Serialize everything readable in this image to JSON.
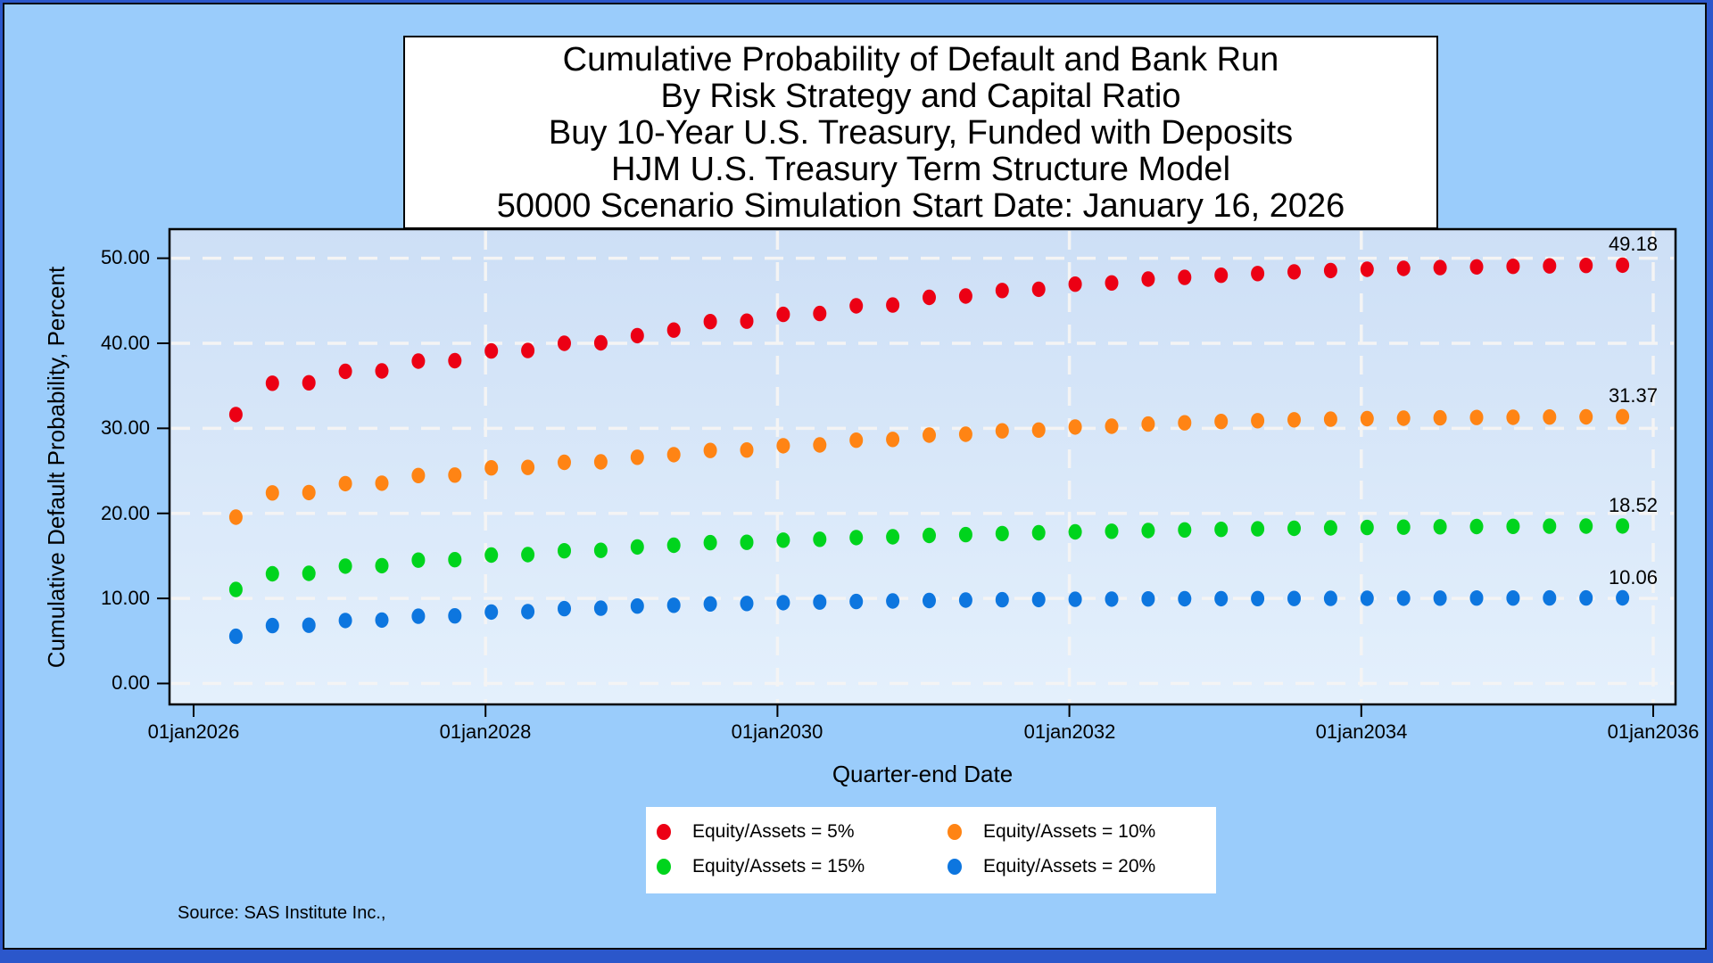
{
  "page": {
    "background_color": "#2b57cb",
    "panel_background_color": "#9accfb"
  },
  "title": {
    "lines": [
      "Cumulative Probability of Default and Bank Run",
      "By Risk Strategy and Capital Ratio",
      "Buy 10-Year U.S. Treasury, Funded with Deposits",
      "HJM U.S. Treasury Term Structure Model",
      "50000 Scenario Simulation Start Date: January 16, 2026"
    ]
  },
  "y_axis": {
    "title": "Cumulative Default Probability, Percent",
    "tick_labels": [
      "50.00",
      "40.00",
      "30.00",
      "20.00",
      "10.00",
      "0.00"
    ]
  },
  "x_axis": {
    "title": "Quarter-end Date",
    "tick_labels": [
      "01jan2026",
      "01jan2028",
      "01jan2030",
      "01jan2032",
      "01jan2034",
      "01jan2036"
    ]
  },
  "source_note": "Source: SAS Institute Inc.,",
  "chart_data": {
    "type": "scatter",
    "title_lines": [
      "Cumulative Probability of Default and Bank Run",
      "By Risk Strategy and Capital Ratio",
      "Buy 10-Year U.S. Treasury, Funded with Deposits",
      "HJM U.S. Treasury Term Structure Model",
      "50000 Scenario Simulation Start Date: January 16, 2026"
    ],
    "xlabel": "Quarter-end Date",
    "ylabel": "Cumulative Default Probability, Percent",
    "grid": true,
    "gridline_color": "#f4f4f4",
    "legend_position": "bottom",
    "x_tick_years": [
      2026,
      2028,
      2030,
      2032,
      2034,
      2036
    ],
    "x_gridline_years": [
      2028,
      2030,
      2032,
      2034,
      2036
    ],
    "y_ticks": [
      0,
      10,
      20,
      30,
      40,
      50
    ],
    "ylim": [
      -2.5,
      53.4
    ],
    "xlim_years": [
      2025.84,
      2036.15
    ],
    "x_start_year": 2026.29,
    "x_step_years": 0.25,
    "x_dates": [
      "16apr2026",
      "16jul2026",
      "16oct2026",
      "16jan2027",
      "16apr2027",
      "16jul2027",
      "16oct2027",
      "16jan2028",
      "16apr2028",
      "16jul2028",
      "16oct2028",
      "16jan2029",
      "16apr2029",
      "16jul2029",
      "16oct2029",
      "16jan2030",
      "16apr2030",
      "16jul2030",
      "16oct2030",
      "16jan2031",
      "16apr2031",
      "16jul2031",
      "16oct2031",
      "16jan2032",
      "16apr2032",
      "16jul2032",
      "16oct2032",
      "16jan2033",
      "16apr2033",
      "16jul2033",
      "16oct2033",
      "16jan2034",
      "16apr2034",
      "16jul2034",
      "16oct2034",
      "16jan2035",
      "16apr2035",
      "16jul2035",
      "16oct2035"
    ],
    "series": [
      {
        "name": "Equity/Assets = 5%",
        "color": "#ec0014",
        "final_label": "49.18",
        "values": [
          31.62,
          35.3,
          35.35,
          36.7,
          36.75,
          37.9,
          37.95,
          39.1,
          39.15,
          40.0,
          40.05,
          40.9,
          41.55,
          42.55,
          42.6,
          43.4,
          43.5,
          44.4,
          44.5,
          45.4,
          45.55,
          46.2,
          46.35,
          46.95,
          47.1,
          47.55,
          47.75,
          48.0,
          48.2,
          48.4,
          48.55,
          48.7,
          48.8,
          48.9,
          48.98,
          49.05,
          49.1,
          49.15,
          49.18
        ]
      },
      {
        "name": "Equity/Assets = 10%",
        "color": "#ff8414",
        "final_label": "31.37",
        "values": [
          19.55,
          22.4,
          22.45,
          23.5,
          23.55,
          24.45,
          24.5,
          25.35,
          25.4,
          26.0,
          26.05,
          26.6,
          26.9,
          27.4,
          27.45,
          27.95,
          28.05,
          28.6,
          28.7,
          29.2,
          29.3,
          29.7,
          29.8,
          30.15,
          30.25,
          30.5,
          30.65,
          30.8,
          30.9,
          31.0,
          31.08,
          31.14,
          31.19,
          31.23,
          31.27,
          31.3,
          31.33,
          31.35,
          31.37
        ]
      },
      {
        "name": "Equity/Assets = 15%",
        "color": "#00d41d",
        "final_label": "18.52",
        "values": [
          11.05,
          12.9,
          12.95,
          13.8,
          13.85,
          14.5,
          14.55,
          15.1,
          15.15,
          15.6,
          15.65,
          16.05,
          16.25,
          16.55,
          16.6,
          16.85,
          16.95,
          17.15,
          17.25,
          17.4,
          17.5,
          17.62,
          17.72,
          17.82,
          17.9,
          17.98,
          18.05,
          18.12,
          18.18,
          18.24,
          18.29,
          18.34,
          18.38,
          18.42,
          18.45,
          18.47,
          18.49,
          18.51,
          18.52
        ]
      },
      {
        "name": "Equity/Assets = 20%",
        "color": "#0d76df",
        "final_label": "10.06",
        "values": [
          5.55,
          6.8,
          6.85,
          7.4,
          7.45,
          7.9,
          7.95,
          8.4,
          8.45,
          8.8,
          8.85,
          9.1,
          9.2,
          9.35,
          9.4,
          9.5,
          9.57,
          9.64,
          9.7,
          9.75,
          9.8,
          9.84,
          9.87,
          9.9,
          9.92,
          9.94,
          9.96,
          9.97,
          9.98,
          9.99,
          10.0,
          10.01,
          10.02,
          10.03,
          10.04,
          10.045,
          10.05,
          10.055,
          10.06
        ]
      }
    ]
  }
}
